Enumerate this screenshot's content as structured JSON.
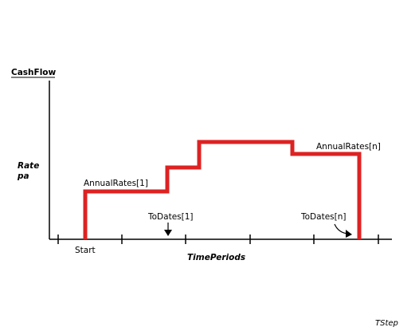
{
  "labels": {
    "y_title": "CashFlow",
    "rate_line1": "Rate",
    "rate_line2": "pa",
    "annual_rates_first": "AnnualRates[1]",
    "annual_rates_last": "AnnualRates[n]",
    "to_dates_first": "ToDates[1]",
    "to_dates_last": "ToDates[n]",
    "start": "Start",
    "x_title": "TimePeriods",
    "caption": "TStep"
  },
  "colors": {
    "step_line": "#dd2222",
    "axis": "#000000"
  }
}
